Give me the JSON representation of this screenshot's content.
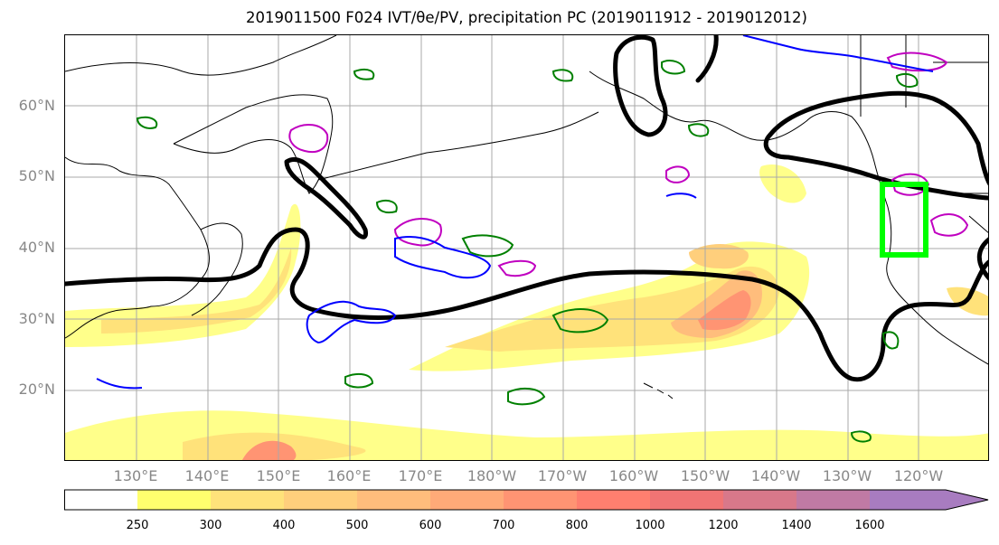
{
  "title": "2019011500 F024 IVT/θe/PV, precipitation PC (2019011912 - 2019012012)",
  "map": {
    "lat_labels": [
      "60°N",
      "50°N",
      "40°N",
      "30°N",
      "20°N"
    ],
    "lon_labels": [
      "130°E",
      "140°E",
      "150°E",
      "160°E",
      "170°E",
      "180°W",
      "170°W",
      "160°W",
      "150°W",
      "140°W",
      "130°W",
      "120°W"
    ],
    "highlight_box_color": "#00ff00",
    "contour_colors": {
      "theta_e": "#000000",
      "pv_magenta": "#c000c0",
      "pv_blue": "#0000ff",
      "precip": "#008000"
    }
  },
  "colorbar": {
    "ticks": [
      "250",
      "300",
      "400",
      "500",
      "600",
      "700",
      "800",
      "1000",
      "1200",
      "1400",
      "1600"
    ],
    "colors": [
      "#ffff6e",
      "#ffe27a",
      "#ffcf7c",
      "#ffbd7c",
      "#ffaa78",
      "#ff9473",
      "#ff7f6f",
      "#f07474",
      "#d8788a",
      "#c07aa4",
      "#a87cc0"
    ]
  }
}
